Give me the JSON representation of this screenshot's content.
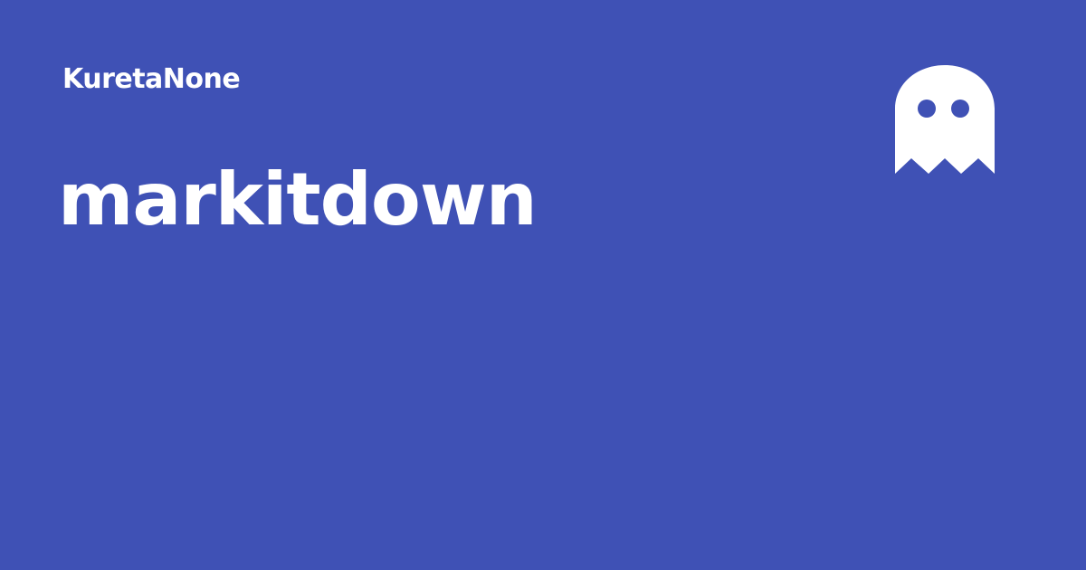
{
  "card": {
    "owner": "KuretaNone",
    "repository": "markitdown",
    "icon": "ghost-icon"
  },
  "colors": {
    "background": "#3f51b5",
    "text": "#ffffff",
    "icon": "#ffffff"
  }
}
